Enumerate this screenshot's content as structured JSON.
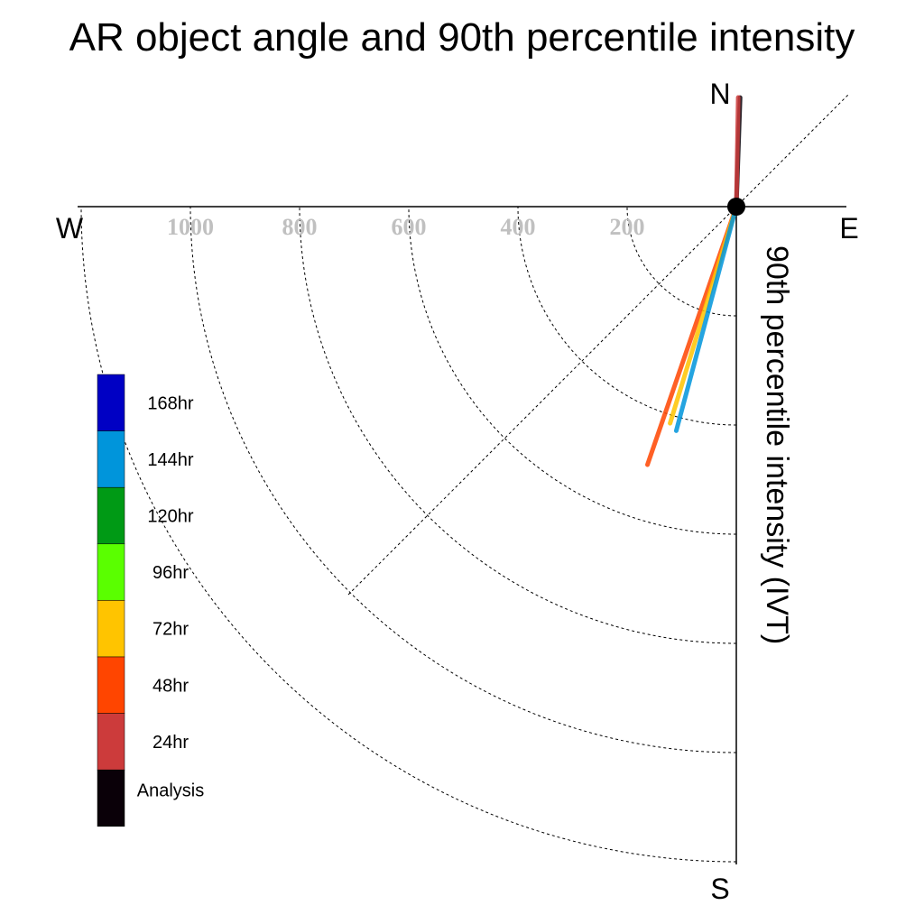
{
  "chart_data": {
    "type": "polar-vector",
    "title": "AR object angle and 90th percentile intensity",
    "radial_axis_label": "90th percentile intensity (IVT)",
    "compass": {
      "north": "N",
      "south": "S",
      "east": "E",
      "west": "W"
    },
    "radial_ticks": [
      200,
      400,
      600,
      800,
      1000
    ],
    "radial_max": 1200,
    "series": [
      {
        "name": "Analysis",
        "color": "#0a0008",
        "angle_deg": 2,
        "intensity": 200
      },
      {
        "name": "24hr",
        "color": "#cc3b3b",
        "angle_deg": 1,
        "intensity": 200
      },
      {
        "name": "48hr",
        "color": "#ff4500",
        "angle_deg": 199,
        "intensity": 500
      },
      {
        "name": "72hr",
        "color": "#ffc400",
        "angle_deg": 197,
        "intensity": 415
      },
      {
        "name": "144hr",
        "color": "#0095db",
        "angle_deg": 195,
        "intensity": 425
      }
    ],
    "legend": [
      {
        "label": "168hr",
        "color": "#0000c4"
      },
      {
        "label": "144hr",
        "color": "#0095db"
      },
      {
        "label": "120hr",
        "color": "#009a15"
      },
      {
        "label": "96hr",
        "color": "#5aff00"
      },
      {
        "label": "72hr",
        "color": "#ffc400"
      },
      {
        "label": "48hr",
        "color": "#ff4500"
      },
      {
        "label": "24hr",
        "color": "#cc3b3b"
      },
      {
        "label": "Analysis",
        "color": "#0a0008"
      }
    ]
  }
}
